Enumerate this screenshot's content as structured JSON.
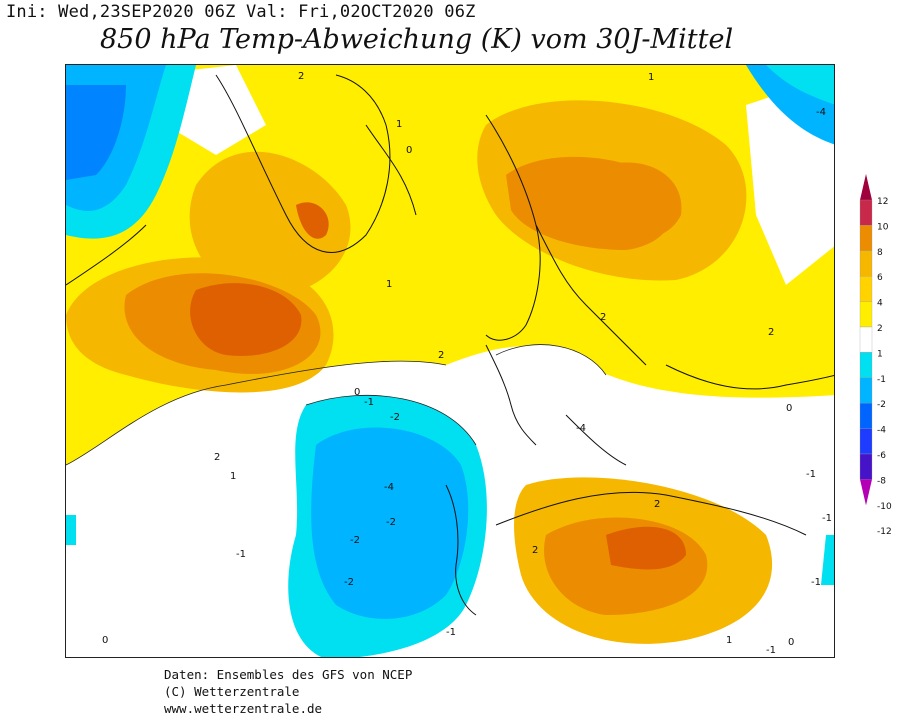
{
  "header": {
    "run_info": "Ini: Wed,23SEP2020 06Z Val: Fri,02OCT2020 06Z",
    "title": "850 hPa Temp-Abweichung (K) vom 30J-Mittel"
  },
  "map": {
    "variable": "850 hPa temperature anomaly",
    "units": "K",
    "contour_labels": [
      "2",
      "1",
      "0",
      "-2",
      "1",
      "2",
      "2",
      "1",
      "-1",
      "-2",
      "-4",
      "-2",
      "-2",
      "0",
      "2",
      "-1",
      "0",
      "-1",
      "-4",
      "2",
      "0",
      "2",
      "-1",
      "-1",
      "1",
      "0",
      "-1",
      "1",
      "-1",
      "-4",
      "2"
    ],
    "colors": {
      "anom_pos_1": "#ffee00",
      "anom_pos_2": "#ffd200",
      "anom_pos_4": "#f5b700",
      "anom_pos_6": "#ec8c00",
      "anom_pos_8": "#de6000",
      "neutral": "#ffffff",
      "anom_neg_1": "#00e0f0",
      "anom_neg_2": "#00b4ff",
      "anom_neg_4": "#0064ff"
    }
  },
  "colorbar": {
    "labels": [
      "12",
      "10",
      "8",
      "6",
      "4",
      "2",
      "1",
      "-1",
      "-2",
      "-4",
      "-6",
      "-8",
      "-10",
      "-12"
    ],
    "colors": [
      "#a0003c",
      "#c8284a",
      "#ec8c00",
      "#f5b700",
      "#ffd200",
      "#ffee00",
      "#ffffff",
      "#00e0f0",
      "#00b4ff",
      "#0064ff",
      "#1e3cff",
      "#4614c8",
      "#b400b4"
    ]
  },
  "credits": {
    "line1": "Daten: Ensembles des GFS von NCEP",
    "line2": "(C) Wetterzentrale",
    "line3": "www.wetterzentrale.de"
  }
}
